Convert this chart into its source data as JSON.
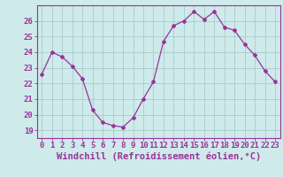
{
  "x": [
    0,
    1,
    2,
    3,
    4,
    5,
    6,
    7,
    8,
    9,
    10,
    11,
    12,
    13,
    14,
    15,
    16,
    17,
    18,
    19,
    20,
    21,
    22,
    23
  ],
  "y": [
    22.6,
    24.0,
    23.7,
    23.1,
    22.3,
    20.3,
    19.5,
    19.3,
    19.2,
    19.8,
    21.0,
    22.1,
    24.7,
    25.7,
    26.0,
    26.6,
    26.1,
    26.6,
    25.6,
    25.4,
    24.5,
    23.8,
    22.8,
    22.1
  ],
  "line_color": "#993399",
  "marker": "D",
  "marker_size": 2.0,
  "bg_color": "#ceeaea",
  "grid_color": "#aacccc",
  "xlabel": "Windchill (Refroidissement éolien,°C)",
  "xlabel_fontsize": 7.5,
  "tick_fontsize": 6.5,
  "ylim": [
    18.5,
    27.0
  ],
  "xlim": [
    -0.5,
    23.5
  ],
  "yticks": [
    19,
    20,
    21,
    22,
    23,
    24,
    25,
    26
  ],
  "xticks": [
    0,
    1,
    2,
    3,
    4,
    5,
    6,
    7,
    8,
    9,
    10,
    11,
    12,
    13,
    14,
    15,
    16,
    17,
    18,
    19,
    20,
    21,
    22,
    23
  ]
}
